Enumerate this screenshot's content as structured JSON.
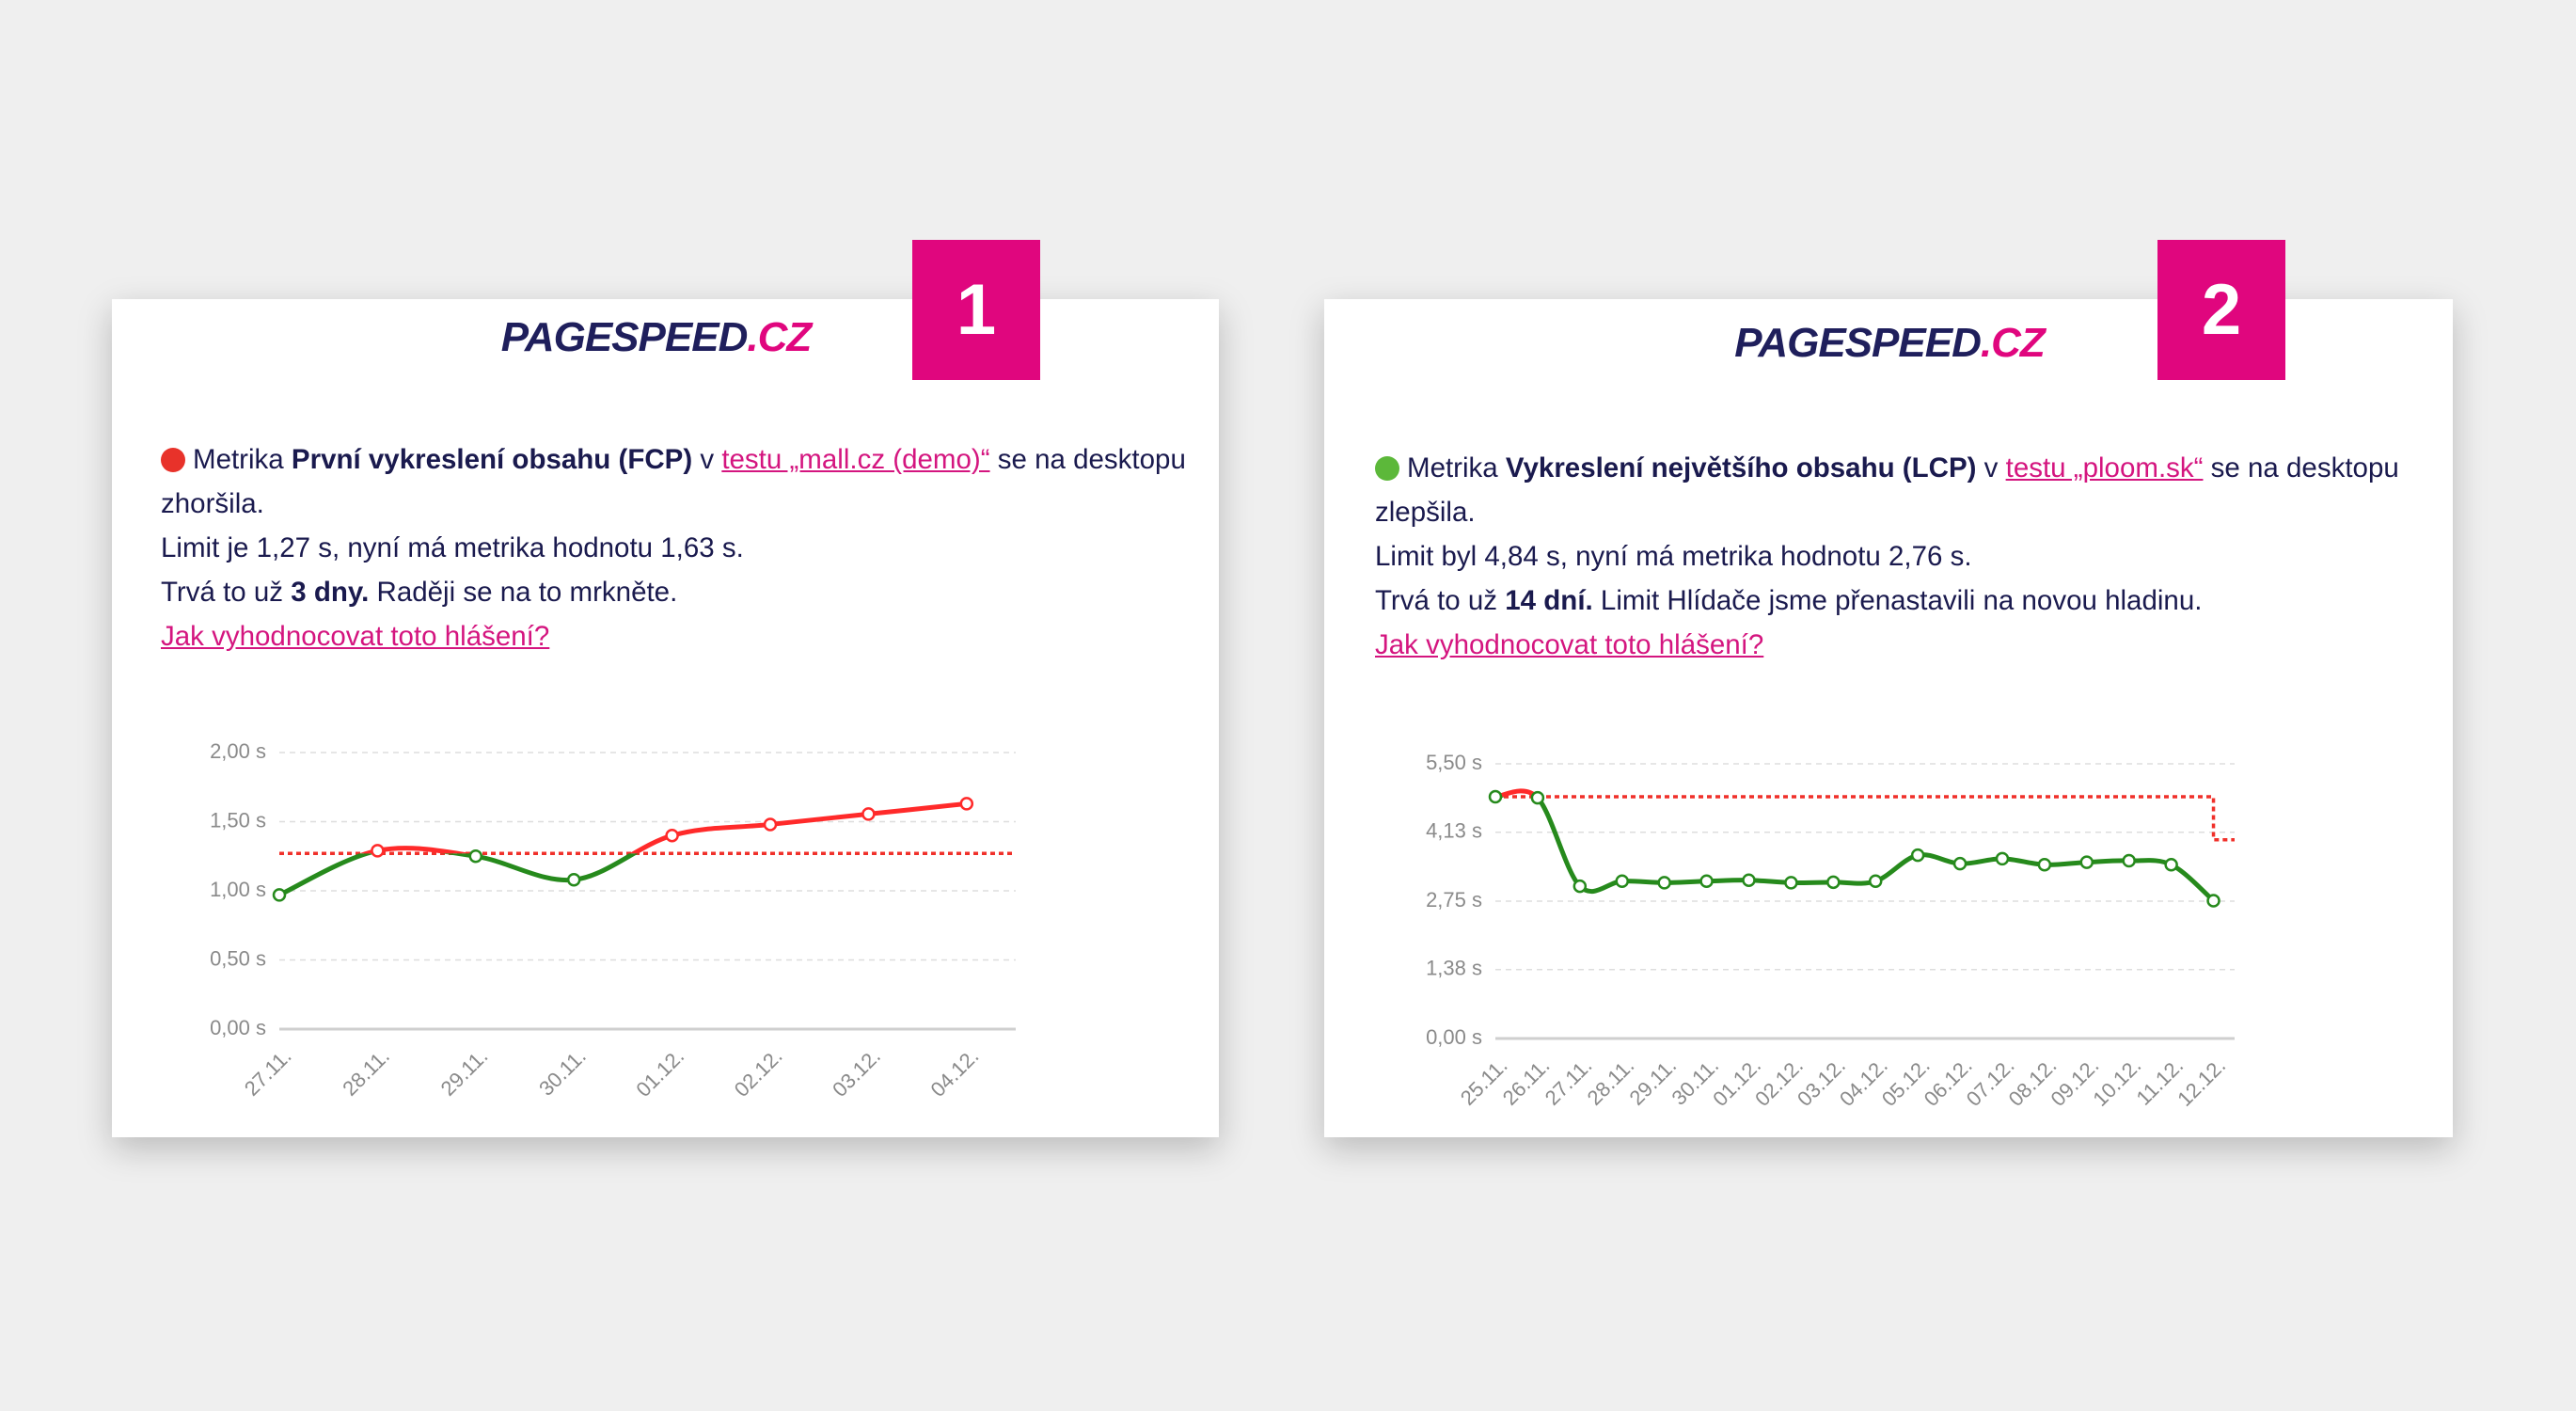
{
  "cards": [
    {
      "badge": "1",
      "logo": {
        "main": "PAGESPEED",
        "suffix": ".CZ"
      },
      "message": {
        "prefix": "Metrika ",
        "metric": "První vykreslení obsahu (FCP)",
        "connector": " v ",
        "test_link": "testu „mall.cz (demo)“",
        "suffix": " se na desktopu zhoršila."
      },
      "limit_line": "Limit je 1,27 s, nyní má metrika hodnotu 1,63 s.",
      "duration": {
        "prefix": "Trvá to už ",
        "bold": "3 dny.",
        "suffix": " Raději se na to mrkněte."
      },
      "help_link": "Jak vyhodnocovat toto hlášení?",
      "chart": {
        "type": "line",
        "categories": [
          "27.11.",
          "28.11.",
          "29.11.",
          "30.11.",
          "01.12.",
          "02.12.",
          "03.12.",
          "04.12."
        ],
        "series": [
          {
            "values": [
              0.97,
              1.29,
              1.25,
              1.08,
              1.4,
              1.48,
              1.555,
              1.63
            ],
            "color": "#268a1c",
            "above_color": "#ff2a2a"
          }
        ],
        "limit": {
          "values": [
            1.27,
            1.27,
            1.27,
            1.27,
            1.27,
            1.27,
            1.27,
            1.27
          ],
          "color": "#f0302a"
        },
        "ylim": [
          0,
          2
        ],
        "yticks": [
          {
            "value": 0,
            "label": "0,00 s"
          },
          {
            "value": 0.5,
            "label": "0,50 s"
          },
          {
            "value": 1,
            "label": "1,00 s"
          },
          {
            "value": 1.5,
            "label": "1,50 s"
          },
          {
            "value": 2,
            "label": "2,00 s"
          }
        ],
        "grid": true
      }
    },
    {
      "badge": "2",
      "logo": {
        "main": "PAGESPEED",
        "suffix": ".CZ"
      },
      "message": {
        "prefix": "Metrika ",
        "metric": "Vykreslení největšího obsahu (LCP)",
        "connector": " v ",
        "test_link": "testu „ploom.sk“",
        "suffix": " se na desktopu zlepšila."
      },
      "limit_line": "Limit byl 4,84 s, nyní má metrika hodnotu 2,76 s.",
      "duration": {
        "prefix": "Trvá to už ",
        "bold": "14 dní.",
        "suffix": " Limit Hlídače jsme přenastavili na novou hladinu."
      },
      "help_link": "Jak vyhodnocovat toto hlášení?",
      "chart": {
        "type": "line",
        "categories": [
          "25.11.",
          "26.11.",
          "27.11.",
          "28.11.",
          "29.11.",
          "30.11.",
          "01.12.",
          "02.12.",
          "03.12.",
          "04.12.",
          "05.12.",
          "06.12.",
          "07.12.",
          "08.12.",
          "09.12.",
          "10.12.",
          "11.12.",
          "12.12."
        ],
        "series": [
          {
            "values": [
              4.84,
              4.82,
              3.05,
              3.15,
              3.12,
              3.15,
              3.17,
              3.12,
              3.13,
              3.15,
              3.67,
              3.5,
              3.6,
              3.48,
              3.53,
              3.56,
              3.48,
              2.76
            ],
            "color": "#268a1c",
            "above_color": "#ff2a2a"
          }
        ],
        "limit": {
          "values": [
            4.84,
            4.84,
            4.84,
            4.84,
            4.84,
            4.84,
            4.84,
            4.84,
            4.84,
            4.84,
            4.84,
            4.84,
            4.84,
            4.84,
            4.84,
            4.84,
            4.84,
            3.98
          ],
          "color": "#f0302a"
        },
        "ylim": [
          0,
          5.5
        ],
        "yticks": [
          {
            "value": 0,
            "label": "0,00 s"
          },
          {
            "value": 1.38,
            "label": "1,38 s"
          },
          {
            "value": 2.75,
            "label": "2,75 s"
          },
          {
            "value": 4.13,
            "label": "4,13 s"
          },
          {
            "value": 5.5,
            "label": "5,50 s"
          }
        ],
        "grid": true
      }
    }
  ]
}
